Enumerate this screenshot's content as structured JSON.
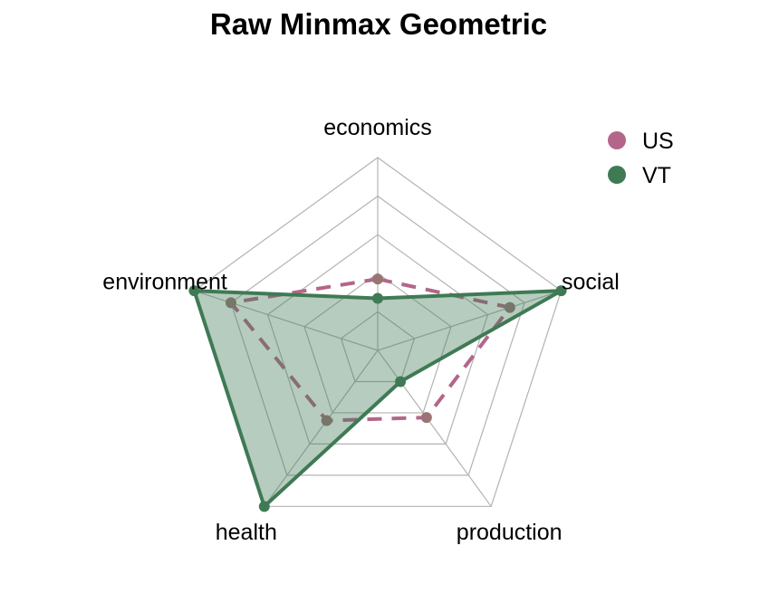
{
  "chart_data": {
    "type": "radar",
    "title": "Raw Minmax Geometric",
    "axes": [
      "economics",
      "social",
      "production",
      "health",
      "environment"
    ],
    "grid_levels": 5,
    "range": [
      0,
      1
    ],
    "legend_position": "top-right",
    "series": [
      {
        "name": "US",
        "values": [
          0.37,
          0.72,
          0.43,
          0.45,
          0.8
        ],
        "color": "#b3668a",
        "line_style": "dashed",
        "fill": "none"
      },
      {
        "name": "VT",
        "values": [
          0.27,
          1.0,
          0.2,
          1.0,
          1.0
        ],
        "color": "#3f7a55",
        "line_style": "solid",
        "fill": "#3f7a55"
      }
    ]
  }
}
